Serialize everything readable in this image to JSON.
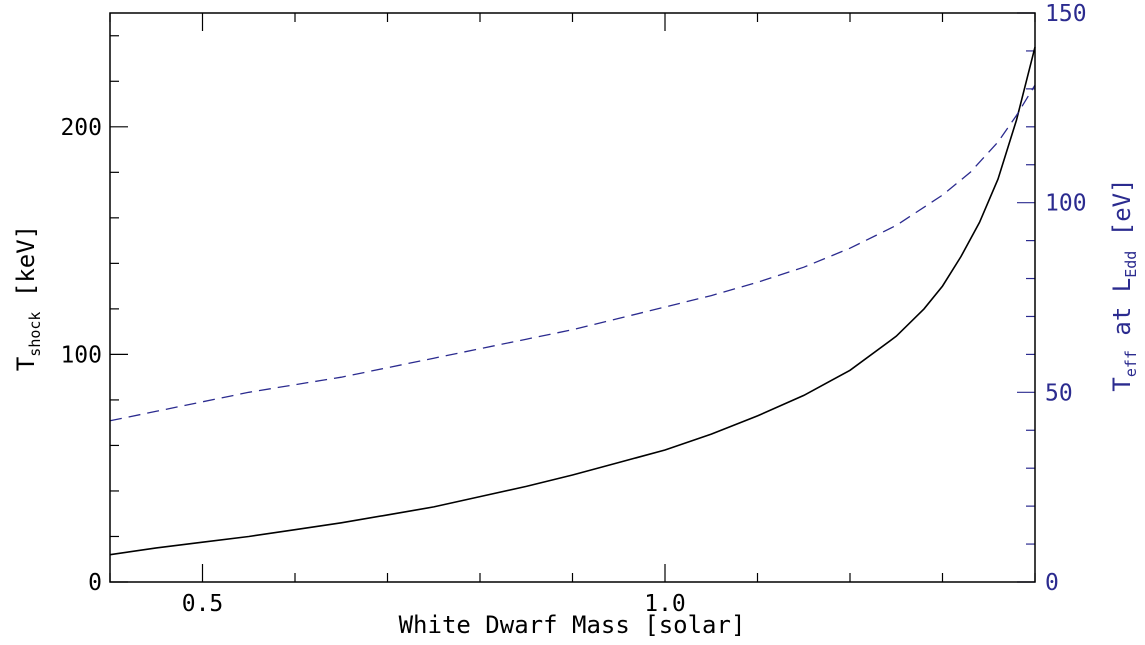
{
  "chart_data": {
    "type": "line",
    "xlabel": "White Dwarf Mass [solar]",
    "ylabel_left": {
      "main": "T",
      "sub": "shock",
      "unit": " [keV]"
    },
    "ylabel_right": {
      "main": "T",
      "sub": "eff",
      "mid": " at L",
      "sub2": "Edd",
      "unit": " [eV]"
    },
    "xlim": [
      0.4,
      1.4
    ],
    "ylim_left": [
      0,
      250
    ],
    "ylim_right": [
      0,
      150
    ],
    "x_ticks_major": [
      0.5,
      1.0
    ],
    "x_tick_labels": [
      "0.5",
      "1.0"
    ],
    "y_left_ticks_major": [
      0,
      100,
      200
    ],
    "y_left_tick_labels": [
      "0",
      "100",
      "200"
    ],
    "y_right_ticks_major": [
      0,
      50,
      100,
      150
    ],
    "y_right_tick_labels": [
      "0",
      "50",
      "100",
      "150"
    ],
    "left_color": "#000000",
    "right_color": "#2b2b8f",
    "series": [
      {
        "axis": "left",
        "style": "solid",
        "x": [
          0.4,
          0.45,
          0.5,
          0.55,
          0.6,
          0.65,
          0.7,
          0.75,
          0.8,
          0.85,
          0.9,
          0.95,
          1.0,
          1.05,
          1.1,
          1.15,
          1.2,
          1.25,
          1.28,
          1.3,
          1.32,
          1.34,
          1.36,
          1.38,
          1.4
        ],
        "y": [
          12,
          15,
          17.5,
          20,
          23,
          26,
          29.5,
          33,
          37.5,
          42,
          47,
          52.5,
          58,
          65,
          73,
          82,
          93,
          108,
          120,
          130,
          143,
          158,
          177,
          203,
          235
        ]
      },
      {
        "axis": "right",
        "style": "dashed",
        "x": [
          0.4,
          0.45,
          0.5,
          0.55,
          0.6,
          0.65,
          0.7,
          0.75,
          0.8,
          0.85,
          0.9,
          0.95,
          1.0,
          1.05,
          1.1,
          1.15,
          1.2,
          1.25,
          1.3,
          1.33,
          1.36,
          1.38,
          1.4
        ],
        "y": [
          42.5,
          45,
          47.5,
          50,
          52,
          54,
          56.5,
          59,
          61.5,
          64,
          66.5,
          69.5,
          72.5,
          75.5,
          79,
          83,
          88,
          94,
          102,
          108,
          116,
          123,
          131
        ]
      }
    ]
  }
}
